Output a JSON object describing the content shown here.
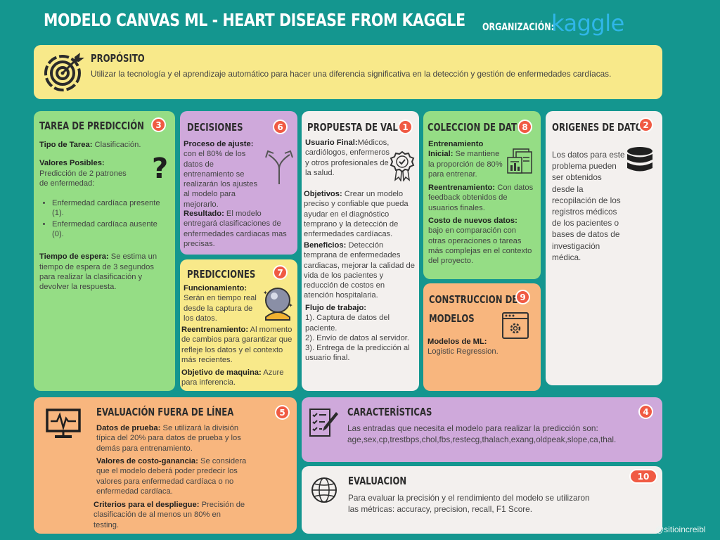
{
  "header": {
    "title": "MODELO CANVAS ML - HEART DISEASE FROM KAGGLE",
    "org_label": "ORGANIZACIÓN:",
    "org_logo": "kaggle"
  },
  "proposito": {
    "title": "PROPÓSITO",
    "text": "Utilizar la tecnología y el aprendizaje automático para hacer una diferencia significativa en la detección y gestión de enfermedades cardíacas.",
    "icon": "target-icon"
  },
  "tarea": {
    "title": "TAREA DE PREDICCIÓN",
    "number": "3",
    "tipo_label": "Tipo de Tarea:",
    "tipo_value": " Clasificación.",
    "valores_label": "Valores Posibles:",
    "valores_value": "Predicción de 2 patrones de enfermedad:",
    "items": [
      "Enfermedad cardíaca presente (1).",
      "Enfermedad cardíaca ausente (0)."
    ],
    "espera_label": "Tiempo de espera:",
    "espera_value": " Se estima un tiempo de espera de 3 segundos para realizar la clasificación y devolver la respuesta.",
    "icon": "question-icon"
  },
  "decisiones": {
    "title": "DECISIONES",
    "number": "6",
    "ajuste_label": "Proceso de ajuste:",
    "ajuste_value": "con el 80% de los datos de entrenamiento se realizarán los ajustes al modelo para mejorarlo.",
    "resultado_label": "Resultado:",
    "resultado_value": " El modelo entregará clasificaciones de enfermedades cardiacas mas precisas.",
    "icon": "split-arrows-icon"
  },
  "predicciones": {
    "title": "PREDICCIONES",
    "number": "7",
    "func_label": "Funcionamiento:",
    "func_value": "Serán en tiempo real desde la captura de los datos.",
    "reent_label": "Reentrenamiento:",
    "reent_value": " Al momento de cambios para garantizar que refleje los datos y el contexto más recientes.",
    "obj_label": "Objetivo de maquina:",
    "obj_value": " Azure para inferencia.",
    "icon": "crystal-ball-icon"
  },
  "propuesta": {
    "title": "PROPUESTA DE VALOR",
    "number": "1",
    "usuario_label": "Usuario Final:",
    "usuario_value": "Médicos, cardiólogos, enfermeros y otros profesionales de la salud.",
    "objetivos_label": "Objetivos:",
    "objetivos_value": " Crear un modelo preciso y confiable que pueda ayudar en el diagnóstico temprano y la detección de enfermedades cardíacas.",
    "beneficios_label": "Beneficios:",
    "beneficios_value": " Detección temprana de enfermedades cardiacas, mejorar la calidad de vida de los pacientes y reducción de costos en atención hospitalaria.",
    "flujo_label": "Flujo de trabajo:",
    "flujo_steps": [
      "1). Captura de datos del paciente.",
      "2). Envío de datos al servidor.",
      "3). Entrega de la predicción al usuario final."
    ],
    "icon": "award-badge-icon"
  },
  "coleccion": {
    "title": "COLECCION DE DATOS",
    "number": "8",
    "entren_label": "Entrenamiento Inicial:",
    "entren_value": " Se mantiene la proporción de 80% para entrenar.",
    "reent_label": "Reentrenamiento:",
    "reent_value": "  Con datos feedback obtenidos de usuarios finales.",
    "costo_label": "Costo de nuevos datos:",
    "costo_value": " bajo en comparación con otras operaciones o tareas más complejas en el contexto del proyecto.",
    "icon": "documents-chart-icon"
  },
  "construccion": {
    "title_line1": "CONSTRUCCION DE",
    "title_line2": "MODELOS",
    "number": "9",
    "modelos_label": "Modelos de ML:",
    "modelos_value": "Logistic Regression.",
    "icon": "window-gear-icon"
  },
  "origenes": {
    "title": "ORIGENES DE DATOS",
    "number": "2",
    "text": "Los datos para este problema pueden ser obtenidos desde la recopilación de los registros médicos de los pacientes o bases de datos de investigación médica.",
    "icon": "database-icon"
  },
  "evaluacion_offline": {
    "title": "EVALUACIÓN FUERA DE LÍNEA",
    "number": "5",
    "prueba_label": "Datos de prueba:",
    "prueba_value": " Se utilizará la división típica del 20% para datos de prueba y los demás para entrenamiento.",
    "costo_label": "Valores de costo-ganancia:",
    "costo_value": " Se considera que el modelo deberá poder predecir los valores para enfermedad cardíaca o no enfermedad cardíaca.",
    "criterios_label": "Criterios para el despliegue:",
    "criterios_value": " Precisión de clasificación de al menos un 80% en testing.",
    "icon": "monitor-pulse-icon"
  },
  "caracteristicas": {
    "title": "CARACTERÍSTICAS",
    "number": "4",
    "text1": "Las entradas que necesita el modelo para realizar la predicción son:",
    "text2": "age,sex,cp,trestbps,chol,fbs,restecg,thalach,exang,oldpeak,slope,ca,thal.",
    "icon": "checklist-pen-icon"
  },
  "evaluacion": {
    "title": "EVALUACION",
    "number": "10",
    "text": "Para evaluar la precisión y el rendimiento del modelo se utilizaron las métricas: accuracy, precision, recall, F1 Score.",
    "icon": "globe-icon"
  },
  "watermark": "@sitioincreibl"
}
